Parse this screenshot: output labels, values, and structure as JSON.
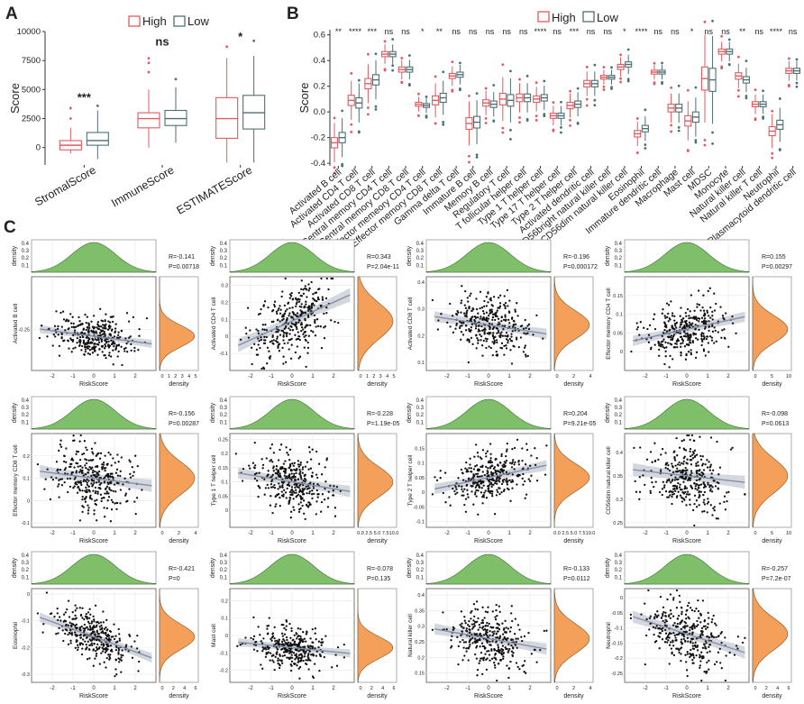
{
  "panel_labels": {
    "a": "A",
    "b": "B",
    "c": "C"
  },
  "legend": {
    "high": "High",
    "low": "Low"
  },
  "colors": {
    "high": "#e05a5f",
    "low": "#4d6f73",
    "density_top": "#7fbf6a",
    "density_right": "#f5a05a",
    "fit_band": "#c9ced6",
    "fit_line": "#8390a8",
    "grid": "#e8e8e8",
    "text": "#222222"
  },
  "chart_data": [
    {
      "id": "A",
      "type": "boxplot",
      "ylabel": "Score",
      "ylim": [
        -1500,
        10000
      ],
      "yticks": [
        0,
        2500,
        5000,
        7500,
        10000
      ],
      "categories": [
        "StromalScore",
        "ImmuneScore",
        "ESTIMATEScore"
      ],
      "significance": [
        "***",
        "ns",
        "*"
      ],
      "series": [
        {
          "name": "High",
          "boxes": [
            {
              "min": -500,
              "q1": -200,
              "med": 200,
              "q3": 600,
              "max": 1700,
              "outliers": [
                2500,
                3400
              ]
            },
            {
              "min": 0,
              "q1": 1700,
              "med": 2500,
              "q3": 3000,
              "max": 5000,
              "outliers": [
                6500,
                7300,
                7700
              ]
            },
            {
              "min": -1300,
              "q1": 800,
              "med": 2500,
              "q3": 4300,
              "max": 7700,
              "outliers": [
                8700
              ]
            }
          ]
        },
        {
          "name": "Low",
          "boxes": [
            {
              "min": -1000,
              "q1": 200,
              "med": 600,
              "q3": 1300,
              "max": 3200,
              "outliers": [
                3600
              ]
            },
            {
              "min": 400,
              "q1": 1900,
              "med": 2500,
              "q3": 3200,
              "max": 5200,
              "outliers": [
                5900
              ]
            },
            {
              "min": -1300,
              "q1": 1600,
              "med": 3000,
              "q3": 4500,
              "max": 7900,
              "outliers": [
                9200
              ]
            }
          ]
        }
      ]
    },
    {
      "id": "B",
      "type": "boxplot",
      "ylabel": "Score",
      "ylim": [
        -0.42,
        0.64
      ],
      "yticks": [
        -0.4,
        -0.2,
        0.0,
        0.2,
        0.4,
        0.6
      ],
      "ytick_labels": [
        "-0.4",
        "-0.2",
        "0.0",
        "0.2",
        "0.4",
        "0.6"
      ],
      "categories": [
        "Activated B cell",
        "Activated CD4 T cell",
        "Activated CD8 T cell",
        "Central memory CD4 T cell",
        "Central memory CD8 T cell",
        "Effector memeory CD4 T cell",
        "Effector memory CD8 T cell",
        "Gamma delta T cell",
        "Immature  B cell",
        "Memory B cell",
        "Regulatory T cell",
        "T follicular helper cell",
        "Type 1 T helper cell",
        "Type 17 T helper cell",
        "Type 2 T helper cell",
        "Activated dendritic cell",
        "CD56bright natural killer cell",
        "CD56dim natural killer cell",
        "Eosinophil",
        "Immature dendritic cell",
        "Macrophage",
        "Mast cell",
        "MDSC",
        "Monocyte",
        "Natural killer cell",
        "Natural killer T cell",
        "Neutrophil",
        "Plasmacytoid dendritic cell"
      ],
      "significance": [
        "**",
        "****",
        "***",
        "ns",
        "ns",
        "*",
        "**",
        "ns",
        "ns",
        "ns",
        "ns",
        "ns",
        "****",
        "ns",
        "***",
        "ns",
        "ns",
        "*",
        "****",
        "ns",
        "ns",
        "*",
        "ns",
        "ns",
        "**",
        "ns",
        "****",
        "ns"
      ],
      "medians_high": [
        -0.24,
        0.09,
        0.22,
        0.45,
        0.33,
        0.06,
        0.09,
        0.28,
        -0.09,
        0.07,
        0.1,
        0.11,
        0.1,
        -0.03,
        0.05,
        0.22,
        0.27,
        0.35,
        -0.17,
        0.31,
        0.03,
        -0.07,
        0.26,
        0.47,
        0.28,
        0.06,
        -0.15,
        0.32
      ],
      "medians_low": [
        -0.2,
        0.07,
        0.25,
        0.45,
        0.33,
        0.05,
        0.11,
        0.29,
        -0.08,
        0.06,
        0.09,
        0.11,
        0.11,
        -0.03,
        0.06,
        0.22,
        0.27,
        0.37,
        -0.13,
        0.31,
        0.03,
        -0.04,
        0.25,
        0.47,
        0.25,
        0.06,
        -0.1,
        0.32
      ],
      "iqr": [
        0.08,
        0.08,
        0.08,
        0.04,
        0.04,
        0.03,
        0.07,
        0.04,
        0.09,
        0.05,
        0.09,
        0.06,
        0.05,
        0.04,
        0.05,
        0.05,
        0.03,
        0.04,
        0.05,
        0.03,
        0.06,
        0.08,
        0.18,
        0.04,
        0.05,
        0.04,
        0.07,
        0.04
      ]
    },
    {
      "id": "C",
      "type": "scatter_grid",
      "xlabel": "RiskScore",
      "xlim": [
        -3,
        3
      ],
      "xticks": [
        -2,
        -1,
        0,
        1,
        2
      ],
      "density_label": "density",
      "density_ticks": [
        0.1,
        0.2,
        0.3,
        0.4
      ],
      "panels": [
        {
          "ylabel": "Activated B cell",
          "R": "R=-0.141",
          "P": "P=0.00718",
          "slope": -0.012,
          "intercept": -0.28,
          "sd": 0.045,
          "ylim": [
            -0.43,
            -0.02
          ],
          "yticks": [
            -0.25
          ],
          "dticks": [
            "0",
            "1",
            "2",
            "3",
            "4",
            "5"
          ]
        },
        {
          "ylabel": "Activated CD4 T cell",
          "R": "R=0.343",
          "P": "P=2.04e-11",
          "slope": 0.055,
          "intercept": 0.09,
          "sd": 0.1,
          "ylim": [
            -0.2,
            0.35
          ],
          "yticks": [
            -0.1,
            0.0,
            0.1,
            0.2,
            0.3
          ],
          "dticks": [
            "0",
            "1",
            "2",
            "3",
            "4",
            "5"
          ]
        },
        {
          "ylabel": "Activated CD8 T cell",
          "R": "R=-0.196",
          "P": "P=0.000172",
          "slope": -0.012,
          "intercept": 0.24,
          "sd": 0.05,
          "ylim": [
            0.07,
            0.42
          ],
          "yticks": [
            0.1,
            0.2,
            0.3,
            0.4
          ],
          "dticks": [
            "0",
            "2",
            "4"
          ]
        },
        {
          "ylabel": "Effector memory CD4 T cell",
          "R": "R=0.155",
          "P": "P=0.00297",
          "slope": 0.012,
          "intercept": 0.06,
          "sd": 0.035,
          "ylim": [
            -0.05,
            0.2
          ],
          "yticks": [
            0.0,
            0.05,
            0.1,
            0.15
          ],
          "dticks": [
            "0",
            "5",
            "10"
          ]
        },
        {
          "ylabel": "Effector memory CD8 T cell",
          "R": "R=-0.156",
          "P": "P=0.00287",
          "slope": -0.012,
          "intercept": 0.1,
          "sd": 0.07,
          "ylim": [
            -0.12,
            0.3
          ],
          "yticks": [
            -0.1,
            0.0,
            0.1,
            0.2
          ],
          "dticks": [
            "0",
            "2",
            "4"
          ]
        },
        {
          "ylabel": "Type 1 T helper cell",
          "R": "R=-0.228",
          "P": "P=1.19e-05",
          "slope": -0.012,
          "intercept": 0.1,
          "sd": 0.05,
          "ylim": [
            -0.06,
            0.27
          ],
          "yticks": [
            0.0,
            0.05,
            0.1,
            0.15,
            0.2,
            0.25
          ],
          "dticks": [
            "0.0",
            "2.5",
            "5.0",
            "7.5",
            "10.0"
          ]
        },
        {
          "ylabel": "Type 2 T helper cell",
          "R": "R=0.204",
          "P": "P=9.21e-05",
          "slope": 0.015,
          "intercept": 0.05,
          "sd": 0.045,
          "ylim": [
            -0.12,
            0.2
          ],
          "yticks": [
            -0.1,
            -0.05,
            0.0,
            0.05,
            0.1,
            0.15
          ],
          "dticks": [
            "0.0",
            "2.5",
            "5.0",
            "7.5",
            "10.0"
          ]
        },
        {
          "ylabel": "CD56dim natural killer cell",
          "R": "R=-0.098",
          "P": "P=0.0613",
          "slope": -0.005,
          "intercept": 0.35,
          "sd": 0.035,
          "ylim": [
            0.24,
            0.44
          ],
          "yticks": [
            0.25,
            0.3,
            0.35,
            0.4
          ],
          "dticks": [
            "0",
            "5",
            "10"
          ]
        },
        {
          "ylabel": "Eosinophil",
          "R": "R=-0.421",
          "P": "P=0",
          "slope": -0.028,
          "intercept": -0.16,
          "sd": 0.045,
          "ylim": [
            -0.33,
            0.02
          ],
          "yticks": [
            -0.3,
            -0.2,
            -0.1,
            0.0
          ],
          "dticks": [
            "0",
            "2",
            "4",
            "6"
          ]
        },
        {
          "ylabel": "Mast cell",
          "R": "R=-0.078",
          "P": "P=0.135",
          "slope": -0.012,
          "intercept": -0.07,
          "sd": 0.06,
          "ylim": [
            -0.27,
            0.27
          ],
          "yticks": [
            -0.2,
            -0.1,
            0.0,
            0.1,
            0.2
          ],
          "dticks": [
            "0",
            "2",
            "4",
            "6"
          ]
        },
        {
          "ylabel": "Natural killer cell",
          "R": "R=-0.133",
          "P": "P=0.0112",
          "slope": -0.012,
          "intercept": 0.26,
          "sd": 0.045,
          "ylim": [
            0.12,
            0.42
          ],
          "yticks": [
            0.15,
            0.2,
            0.25,
            0.3,
            0.35,
            0.4
          ],
          "dticks": [
            "0",
            "2",
            "4"
          ]
        },
        {
          "ylabel": "Neutrophil",
          "R": "R=-0.257",
          "P": "P=7.2e-07",
          "slope": -0.022,
          "intercept": -0.12,
          "sd": 0.05,
          "ylim": [
            -0.28,
            0.03
          ],
          "yticks": [
            -0.25,
            -0.2,
            -0.15,
            -0.1,
            -0.05,
            0.0
          ],
          "dticks": [
            "0",
            "2",
            "4",
            "6"
          ]
        }
      ]
    }
  ]
}
